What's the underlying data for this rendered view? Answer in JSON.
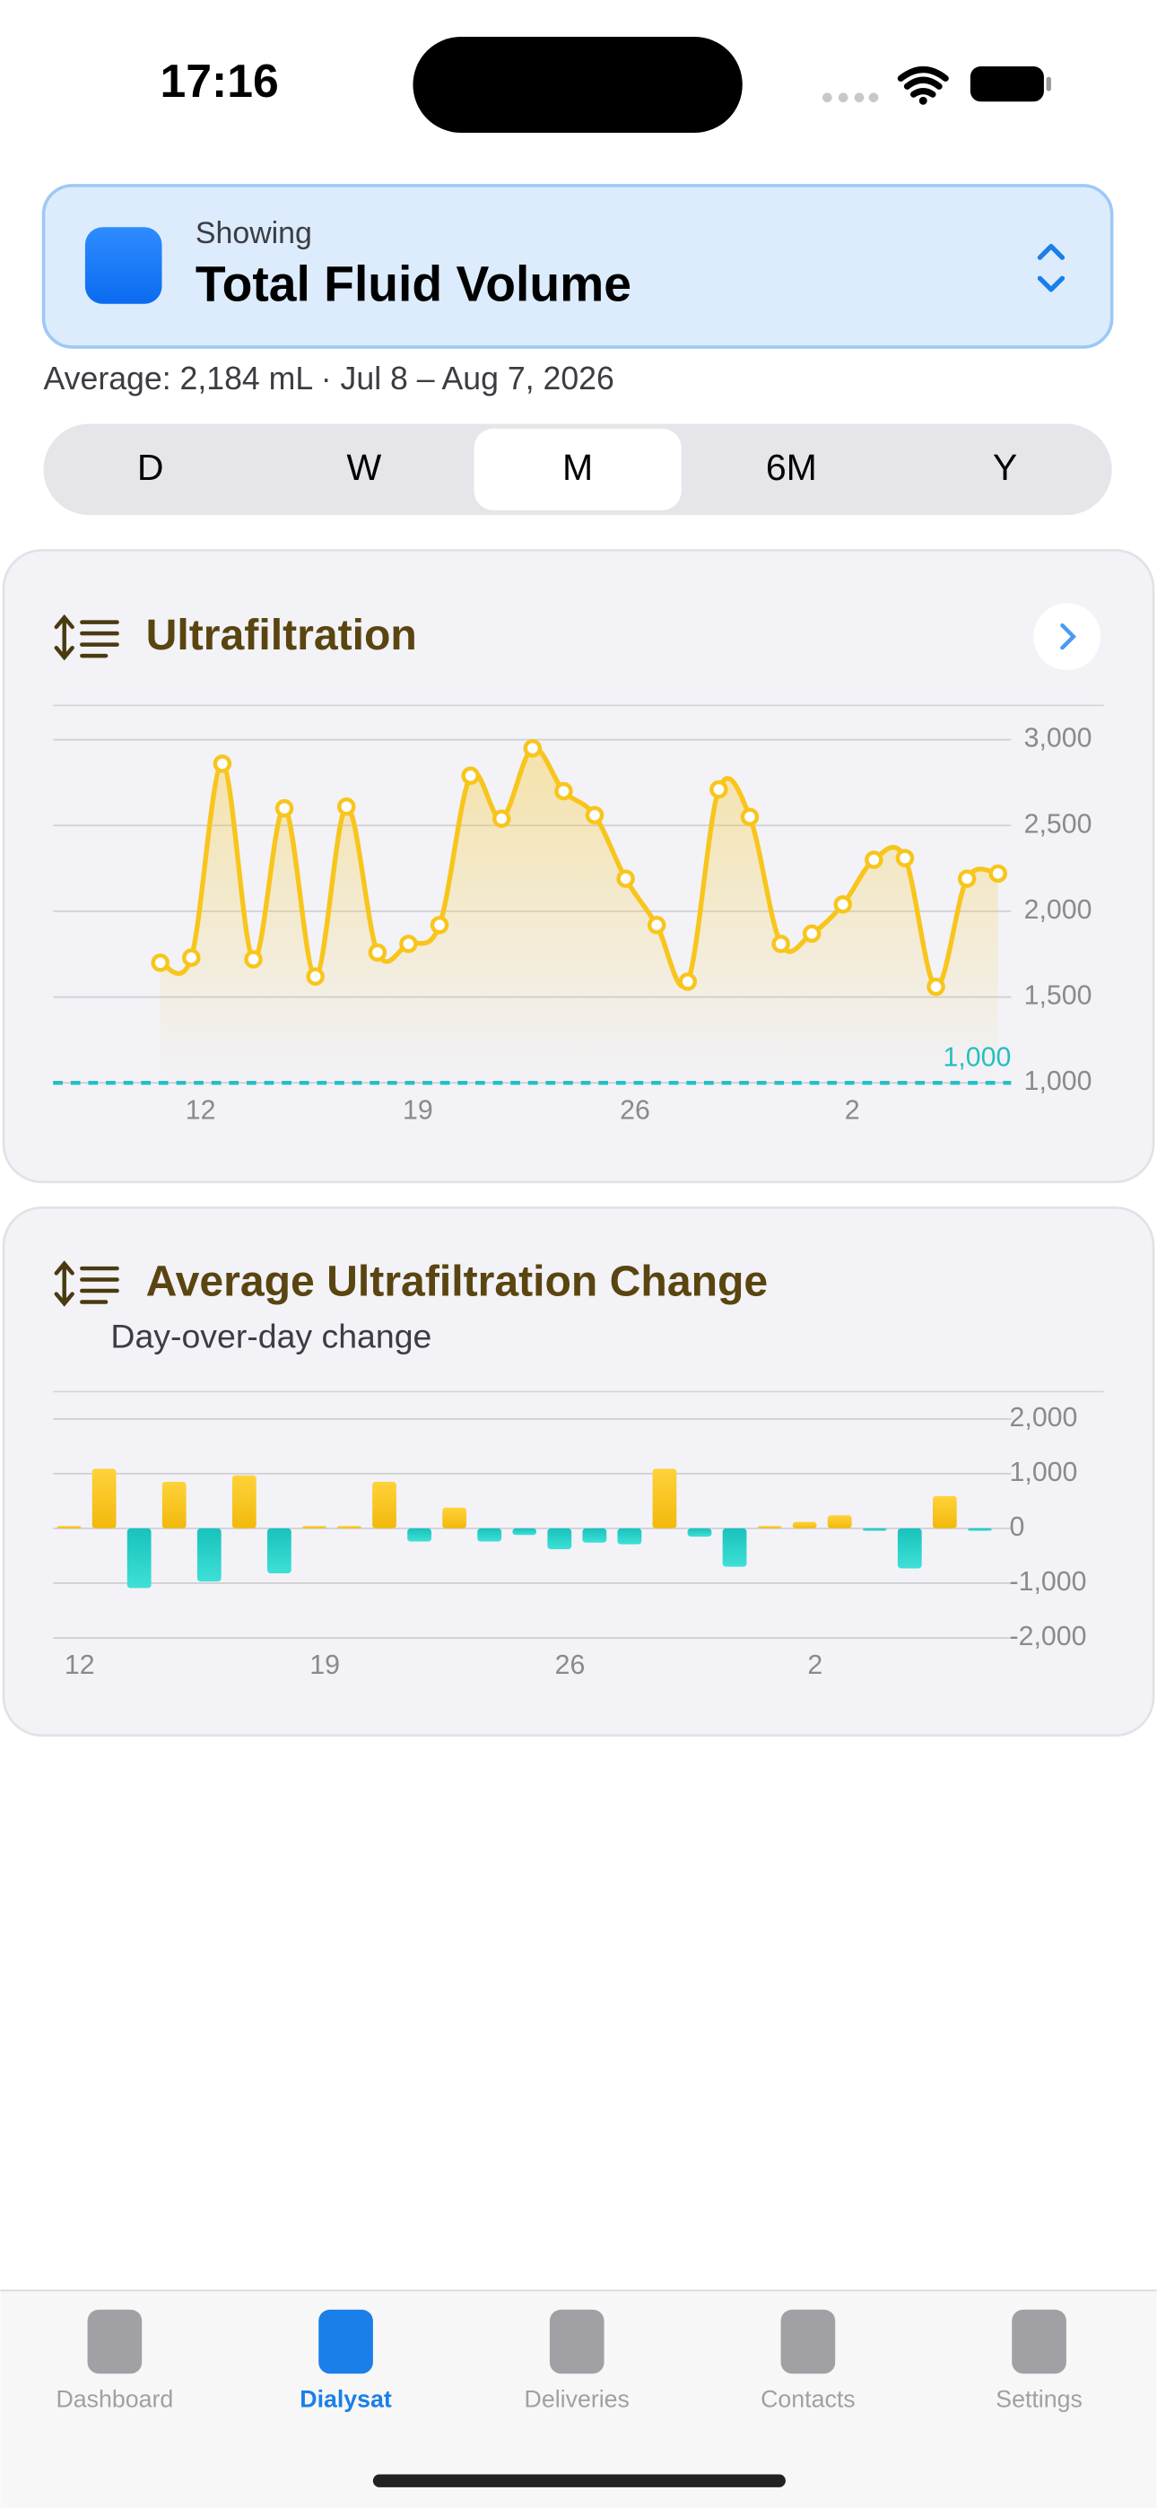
{
  "status_bar": {
    "time": "17:16"
  },
  "header": {
    "caption": "Showing",
    "title": "Total Fluid Volume",
    "summary": "Average: 2,184 mL · Jul 8 – Aug 7, 2026"
  },
  "segments": {
    "options": [
      "D",
      "W",
      "M",
      "6M",
      "Y"
    ],
    "selected": "M"
  },
  "chart_data": [
    {
      "type": "line",
      "title": "Ultrafiltration",
      "categories": [
        null,
        "12",
        null,
        null,
        null,
        null,
        null,
        null,
        "19",
        null,
        null,
        null,
        null,
        null,
        null,
        "26",
        null,
        null,
        null,
        null,
        null,
        null,
        "2",
        null,
        null,
        null,
        null,
        null
      ],
      "values": [
        1700,
        1730,
        2860,
        1720,
        2600,
        1620,
        2610,
        1760,
        1810,
        1920,
        2790,
        2540,
        2950,
        2700,
        2560,
        2190,
        1920,
        1590,
        2710,
        2550,
        1810,
        1870,
        2040,
        2300,
        2310,
        1560,
        2190,
        2220
      ],
      "color": "#f8c51c",
      "ylim": [
        1000,
        3200
      ],
      "yticks": [
        {
          "value": 3000,
          "label": "3,000"
        },
        {
          "value": 2500,
          "label": "2,500"
        },
        {
          "value": 2000,
          "label": "2,000"
        },
        {
          "value": 1500,
          "label": "1,500"
        },
        {
          "value": 1000,
          "label": "1,000"
        }
      ],
      "grid": true,
      "threshold": 1000,
      "threshold_label": "1,000",
      "threshold_color": "#22bfc4"
    },
    {
      "type": "bar",
      "title": "Average Ultrafiltration Change",
      "subtitle": "Day-over-day change",
      "categories": [
        "12",
        null,
        null,
        null,
        null,
        null,
        null,
        "19",
        null,
        null,
        null,
        null,
        null,
        null,
        "26",
        null,
        null,
        null,
        null,
        null,
        null,
        "2",
        null,
        null,
        null,
        null,
        null
      ],
      "values": [
        20,
        1090,
        -1090,
        850,
        -970,
        970,
        -820,
        20,
        40,
        850,
        -240,
        380,
        -240,
        -120,
        -380,
        -260,
        -290,
        1090,
        -150,
        -700,
        30,
        120,
        240,
        -10,
        -730,
        590,
        -20
      ],
      "color": "#f8c51c",
      "negative_color": "#1fcfc8",
      "ylim": [
        -2000,
        2500
      ],
      "yticks": [
        {
          "value": 2000,
          "label": "2,000"
        },
        {
          "value": 1000,
          "label": "1,000"
        },
        0,
        {
          "value": -1000,
          "label": "-1,000"
        },
        {
          "value": -2000,
          "label": "-2,000"
        }
      ],
      "grid": true
    }
  ],
  "tab_bar": {
    "items": [
      "Dashboard",
      "Dialysat",
      "Deliveries",
      "Contacts",
      "Settings"
    ],
    "selected": "Dialysat"
  }
}
